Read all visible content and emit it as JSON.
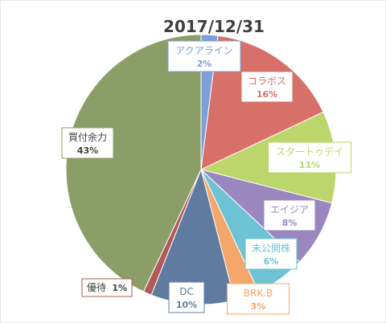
{
  "chart_data": {
    "type": "pie",
    "title": "2017/12/31",
    "slices": [
      {
        "name": "アクアライン",
        "value": 2,
        "label": "2%",
        "color": "#7e9fd8"
      },
      {
        "name": "コラボス",
        "value": 16,
        "label": "16%",
        "color": "#d8706a"
      },
      {
        "name": "スタートゥデイ",
        "value": 11,
        "label": "11%",
        "color": "#bcd66c"
      },
      {
        "name": "エイジア",
        "value": 8,
        "label": "8%",
        "color": "#9a87c0"
      },
      {
        "name": "未公開株",
        "value": 6,
        "label": "6%",
        "color": "#6dc2d3"
      },
      {
        "name": "BRK.B",
        "value": 3,
        "label": "3%",
        "color": "#f5a66b"
      },
      {
        "name": "DC",
        "value": 10,
        "label": "10%",
        "color": "#5f7ca0"
      },
      {
        "name": "優待",
        "value": 1,
        "label": "1%",
        "color": "#b05a5a"
      },
      {
        "name": "買付余力",
        "value": 43,
        "label": "43%",
        "color": "#8c9e68"
      }
    ],
    "start_angle_deg": 0,
    "direction": "clockwise",
    "legend": "none"
  }
}
